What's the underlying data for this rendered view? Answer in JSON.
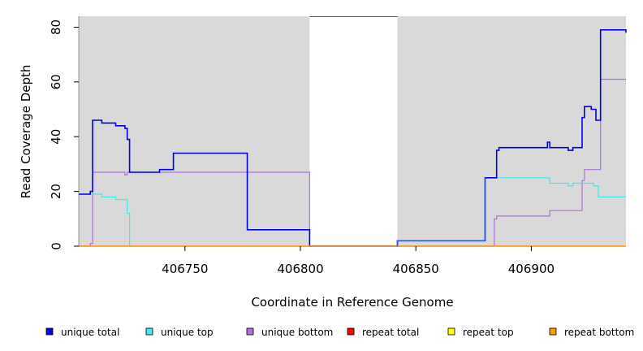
{
  "chart_data": {
    "type": "line",
    "xlabel": "Coordinate in Reference Genome",
    "ylabel": "Read Coverage Depth",
    "xlim": [
      406704,
      406941
    ],
    "ylim": [
      0,
      84
    ],
    "x_ticks": [
      406750,
      406800,
      406850,
      406900
    ],
    "y_ticks": [
      0,
      20,
      40,
      60,
      80
    ],
    "shaded_regions": [
      [
        406704,
        406804
      ],
      [
        406842,
        406941
      ]
    ],
    "colors": {
      "background_shade": "#d9d9d9",
      "unique_total": "#0000ee",
      "unique_top": "#44e8e8",
      "unique_bottom": "#b070e0",
      "repeat_total": "#ff0000",
      "repeat_top": "#ffff00",
      "repeat_bottom": "#ff9900",
      "blend": "#2060e8"
    },
    "series": [
      {
        "name": "unique total",
        "color": "#0000ee",
        "steps": [
          [
            406704,
            19
          ],
          [
            406709,
            20
          ],
          [
            406710,
            46
          ],
          [
            406714,
            45
          ],
          [
            406720,
            44
          ],
          [
            406724,
            43
          ],
          [
            406725,
            39
          ],
          [
            406726,
            27
          ],
          [
            406739,
            28
          ],
          [
            406745,
            34
          ],
          [
            406777,
            6
          ],
          [
            406804,
            0
          ],
          [
            406842,
            2
          ],
          [
            406880,
            25
          ],
          [
            406885,
            35
          ],
          [
            406886,
            36
          ],
          [
            406907,
            38
          ],
          [
            406908,
            36
          ],
          [
            406916,
            35
          ],
          [
            406918,
            36
          ],
          [
            406922,
            47
          ],
          [
            406923,
            51
          ],
          [
            406926,
            50
          ],
          [
            406928,
            46
          ],
          [
            406930,
            79
          ],
          [
            406941,
            78
          ]
        ]
      },
      {
        "name": "unique top",
        "color": "#44e8e8",
        "steps": [
          [
            406704,
            19
          ],
          [
            406710,
            19
          ],
          [
            406714,
            18
          ],
          [
            406720,
            17
          ],
          [
            406725,
            12
          ],
          [
            406726,
            0
          ],
          [
            406804,
            0
          ],
          [
            406842,
            2
          ],
          [
            406880,
            25
          ],
          [
            406908,
            23
          ],
          [
            406916,
            22
          ],
          [
            406918,
            23
          ],
          [
            406927,
            22
          ],
          [
            406929,
            18
          ],
          [
            406941,
            18
          ]
        ]
      },
      {
        "name": "unique bottom",
        "color": "#b070e0",
        "steps": [
          [
            406704,
            0
          ],
          [
            406709,
            1
          ],
          [
            406710,
            27
          ],
          [
            406724,
            26
          ],
          [
            406725,
            27
          ],
          [
            406726,
            27
          ],
          [
            406804,
            0
          ],
          [
            406884,
            10
          ],
          [
            406885,
            11
          ],
          [
            406908,
            13
          ],
          [
            406922,
            24
          ],
          [
            406923,
            28
          ],
          [
            406930,
            61
          ],
          [
            406941,
            61
          ]
        ]
      },
      {
        "name": "repeat total",
        "color": "#ff0000",
        "steps": [
          [
            406704,
            0
          ],
          [
            406941,
            0
          ]
        ]
      },
      {
        "name": "repeat top",
        "color": "#ffff00",
        "steps": [
          [
            406704,
            0
          ],
          [
            406941,
            0
          ]
        ]
      },
      {
        "name": "repeat bottom",
        "color": "#ff9900",
        "steps": [
          [
            406704,
            0
          ],
          [
            406941,
            0
          ]
        ]
      }
    ]
  }
}
